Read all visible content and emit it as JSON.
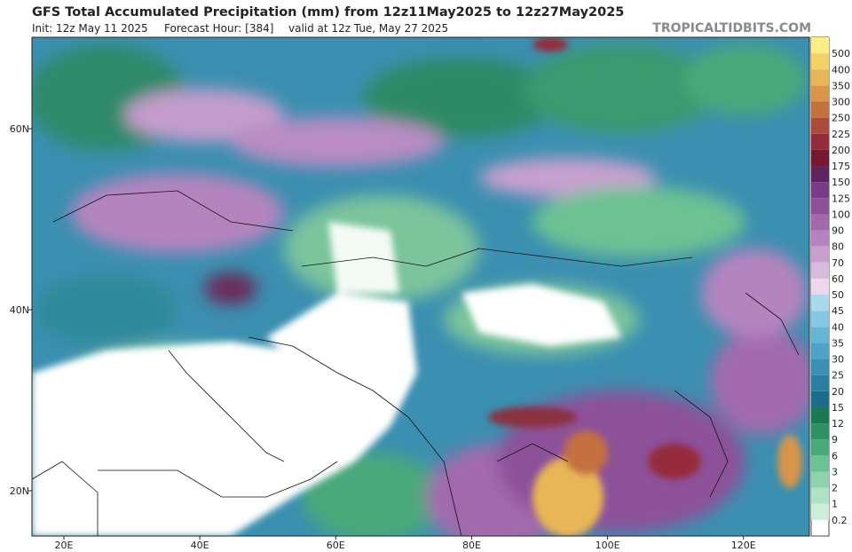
{
  "header": {
    "title": "GFS Total Accumulated Precipitation (mm) from 12z11May2025 to 12z27May2025",
    "init": "Init: 12z May 11 2025",
    "forecast_hour": "Forecast Hour: [384]",
    "valid": "valid at 12z Tue, May 27 2025",
    "watermark": "TROPICALTIDBITS.COM"
  },
  "map": {
    "lon_range": [
      15.3,
      129.7
    ],
    "lat_range": [
      15,
      70.1
    ],
    "lon_ticks": [
      {
        "value": 20,
        "label": "20E"
      },
      {
        "value": 40,
        "label": "40E"
      },
      {
        "value": 60,
        "label": "60E"
      },
      {
        "value": 80,
        "label": "80E"
      },
      {
        "value": 100,
        "label": "100E"
      },
      {
        "value": 120,
        "label": "120E"
      }
    ],
    "lat_ticks": [
      {
        "value": 20,
        "label": "20N"
      },
      {
        "value": 40,
        "label": "40N"
      },
      {
        "value": 60,
        "label": "60N"
      }
    ]
  },
  "colorbar": {
    "levels": [
      {
        "value": 0.2,
        "color": "#cdeedb"
      },
      {
        "value": 1,
        "color": "#aee2c4"
      },
      {
        "value": 2,
        "color": "#8ed3ac"
      },
      {
        "value": 3,
        "color": "#6cc293"
      },
      {
        "value": 6,
        "color": "#4aa97a"
      },
      {
        "value": 9,
        "color": "#2f9063"
      },
      {
        "value": 12,
        "color": "#1b7850"
      },
      {
        "value": 15,
        "color": "#1e6d88"
      },
      {
        "value": 20,
        "color": "#2a7fa0"
      },
      {
        "value": 25,
        "color": "#3a90b4"
      },
      {
        "value": 30,
        "color": "#4ea2c6"
      },
      {
        "value": 35,
        "color": "#66b5d5"
      },
      {
        "value": 40,
        "color": "#84c8e3"
      },
      {
        "value": 45,
        "color": "#aad9ee"
      },
      {
        "value": 50,
        "color": "#ead8ec"
      },
      {
        "value": 60,
        "color": "#d8bcdf"
      },
      {
        "value": 70,
        "color": "#c8a0cf"
      },
      {
        "value": 80,
        "color": "#b584bf"
      },
      {
        "value": 90,
        "color": "#a26aad"
      },
      {
        "value": 100,
        "color": "#8d519a"
      },
      {
        "value": 125,
        "color": "#783c86"
      },
      {
        "value": 150,
        "color": "#5c2560"
      },
      {
        "value": 175,
        "color": "#761832"
      },
      {
        "value": 200,
        "color": "#952a3b"
      },
      {
        "value": 225,
        "color": "#ae4a3d"
      },
      {
        "value": 250,
        "color": "#c4703f"
      },
      {
        "value": 300,
        "color": "#d99548"
      },
      {
        "value": 350,
        "color": "#e8b657"
      },
      {
        "value": 400,
        "color": "#f2d166"
      },
      {
        "value": 500,
        "color": "#faee85"
      }
    ]
  }
}
